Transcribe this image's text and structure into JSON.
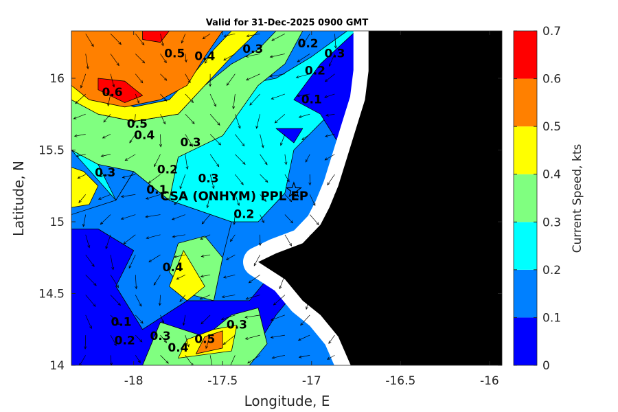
{
  "chart_data": {
    "type": "heatmap",
    "title": "Valid for 31-Dec-2025 0900 GMT",
    "xlabel": "Longitude, E",
    "ylabel": "Latitude, N",
    "xlim": [
      -18.35,
      -15.93
    ],
    "ylim": [
      14.0,
      16.33
    ],
    "xticks": [
      -18,
      -17.5,
      -17,
      -16.5,
      -16
    ],
    "yticks": [
      14,
      14.5,
      15,
      15.5,
      16
    ],
    "colorbar": {
      "label": "Current Speed, kts",
      "ticks": [
        0,
        0.1,
        0.2,
        0.3,
        0.4,
        0.5,
        0.6,
        0.7
      ],
      "levels": [
        {
          "min": 0.0,
          "max": 0.1,
          "color": "#0000ff"
        },
        {
          "min": 0.1,
          "max": 0.2,
          "color": "#0080ff"
        },
        {
          "min": 0.2,
          "max": 0.3,
          "color": "#00ffff"
        },
        {
          "min": 0.3,
          "max": 0.4,
          "color": "#80ff80"
        },
        {
          "min": 0.4,
          "max": 0.5,
          "color": "#ffff00"
        },
        {
          "min": 0.5,
          "max": 0.6,
          "color": "#ff8000"
        },
        {
          "min": 0.6,
          "max": 0.7,
          "color": "#ff0000"
        }
      ]
    },
    "regions": [
      {
        "level": 0.05,
        "points": [
          [
            -18.35,
            14.0
          ],
          [
            -17.6,
            14.0
          ],
          [
            -17.5,
            14.15
          ],
          [
            -17.3,
            14.15
          ],
          [
            -17.2,
            14.35
          ],
          [
            -17.1,
            14.5
          ],
          [
            -17.25,
            14.6
          ],
          [
            -17.35,
            14.45
          ],
          [
            -17.7,
            14.45
          ],
          [
            -17.95,
            14.25
          ],
          [
            -18.1,
            14.55
          ],
          [
            -18.0,
            14.8
          ],
          [
            -18.2,
            14.95
          ],
          [
            -18.35,
            14.95
          ]
        ]
      },
      {
        "level": 0.15,
        "points": [
          [
            -18.35,
            14.95
          ],
          [
            -18.2,
            14.95
          ],
          [
            -18.0,
            14.8
          ],
          [
            -18.1,
            14.55
          ],
          [
            -17.95,
            14.25
          ],
          [
            -17.7,
            14.45
          ],
          [
            -17.55,
            14.45
          ],
          [
            -17.5,
            14.75
          ],
          [
            -17.45,
            15.0
          ],
          [
            -17.8,
            15.15
          ],
          [
            -18.0,
            15.35
          ],
          [
            -18.1,
            15.15
          ],
          [
            -18.35,
            15.05
          ]
        ]
      },
      {
        "level": 0.25,
        "points": [
          [
            -18.35,
            15.5
          ],
          [
            -18.2,
            15.4
          ],
          [
            -18.1,
            15.15
          ],
          [
            -18.0,
            15.35
          ],
          [
            -17.8,
            15.15
          ],
          [
            -17.75,
            15.45
          ],
          [
            -17.55,
            15.6
          ],
          [
            -17.45,
            15.8
          ],
          [
            -17.4,
            15.95
          ],
          [
            -17.2,
            16.0
          ],
          [
            -17.0,
            16.15
          ],
          [
            -16.8,
            16.33
          ],
          [
            -16.68,
            16.33
          ],
          [
            -16.68,
            15.9
          ],
          [
            -16.9,
            15.75
          ],
          [
            -17.1,
            15.5
          ],
          [
            -17.15,
            15.2
          ],
          [
            -17.3,
            15.0
          ],
          [
            -17.45,
            15.0
          ],
          [
            -17.8,
            15.15
          ],
          [
            -18.0,
            15.35
          ],
          [
            -18.1,
            15.15
          ]
        ]
      },
      {
        "level": 0.35,
        "points": [
          [
            -18.35,
            15.85
          ],
          [
            -18.2,
            15.75
          ],
          [
            -18.0,
            15.7
          ],
          [
            -17.75,
            15.75
          ],
          [
            -17.6,
            15.95
          ],
          [
            -17.45,
            16.1
          ],
          [
            -17.3,
            16.2
          ],
          [
            -17.2,
            16.33
          ],
          [
            -17.05,
            16.33
          ],
          [
            -17.15,
            16.1
          ],
          [
            -17.3,
            15.95
          ],
          [
            -17.5,
            15.6
          ],
          [
            -17.75,
            15.45
          ],
          [
            -17.8,
            15.15
          ],
          [
            -18.0,
            15.35
          ],
          [
            -18.2,
            15.4
          ],
          [
            -18.35,
            15.5
          ]
        ]
      },
      {
        "level": 0.45,
        "points": [
          [
            -18.35,
            16.0
          ],
          [
            -18.2,
            15.9
          ],
          [
            -18.0,
            15.8
          ],
          [
            -17.8,
            15.85
          ],
          [
            -17.65,
            16.05
          ],
          [
            -17.55,
            16.2
          ],
          [
            -17.45,
            16.33
          ],
          [
            -17.3,
            16.33
          ],
          [
            -17.45,
            16.15
          ],
          [
            -17.6,
            15.95
          ],
          [
            -17.75,
            15.75
          ],
          [
            -18.0,
            15.7
          ],
          [
            -18.2,
            15.75
          ],
          [
            -18.35,
            15.85
          ]
        ]
      },
      {
        "level": 0.55,
        "points": [
          [
            -18.35,
            16.33
          ],
          [
            -17.5,
            16.33
          ],
          [
            -17.6,
            16.15
          ],
          [
            -17.7,
            15.95
          ],
          [
            -17.85,
            15.85
          ],
          [
            -18.05,
            15.8
          ],
          [
            -18.25,
            15.85
          ],
          [
            -18.35,
            15.95
          ]
        ]
      },
      {
        "level": 0.65,
        "points": [
          [
            -18.2,
            15.92
          ],
          [
            -18.05,
            15.83
          ],
          [
            -17.95,
            15.88
          ],
          [
            -18.05,
            15.98
          ],
          [
            -18.2,
            16.0
          ]
        ]
      },
      {
        "level": 0.65,
        "points": [
          [
            -17.95,
            16.33
          ],
          [
            -17.8,
            16.33
          ],
          [
            -17.85,
            16.25
          ],
          [
            -17.95,
            16.27
          ]
        ]
      },
      {
        "level": 0.45,
        "points": [
          [
            -18.35,
            15.1
          ],
          [
            -18.25,
            15.12
          ],
          [
            -18.2,
            15.25
          ],
          [
            -18.28,
            15.35
          ],
          [
            -18.35,
            15.38
          ]
        ]
      },
      {
        "level": 0.35,
        "points": [
          [
            -17.8,
            14.65
          ],
          [
            -17.7,
            14.5
          ],
          [
            -17.55,
            14.45
          ],
          [
            -17.5,
            14.75
          ],
          [
            -17.6,
            14.9
          ],
          [
            -17.75,
            14.85
          ]
        ]
      },
      {
        "level": 0.45,
        "points": [
          [
            -17.8,
            14.55
          ],
          [
            -17.7,
            14.45
          ],
          [
            -17.6,
            14.55
          ],
          [
            -17.72,
            14.8
          ]
        ]
      },
      {
        "level": 0.35,
        "points": [
          [
            -17.95,
            14.0
          ],
          [
            -17.35,
            14.0
          ],
          [
            -17.25,
            14.15
          ],
          [
            -17.3,
            14.4
          ],
          [
            -17.45,
            14.35
          ],
          [
            -17.6,
            14.2
          ],
          [
            -17.85,
            14.3
          ]
        ]
      },
      {
        "level": 0.45,
        "points": [
          [
            -17.75,
            14.05
          ],
          [
            -17.45,
            14.1
          ],
          [
            -17.42,
            14.28
          ],
          [
            -17.55,
            14.25
          ],
          [
            -17.7,
            14.18
          ]
        ]
      },
      {
        "level": 0.55,
        "points": [
          [
            -17.65,
            14.08
          ],
          [
            -17.5,
            14.12
          ],
          [
            -17.5,
            14.24
          ],
          [
            -17.6,
            14.2
          ]
        ]
      },
      {
        "level": 0.05,
        "points": [
          [
            -16.95,
            16.1
          ],
          [
            -16.75,
            16.33
          ],
          [
            -16.68,
            16.33
          ],
          [
            -16.68,
            15.6
          ],
          [
            -16.85,
            15.55
          ],
          [
            -16.95,
            15.75
          ],
          [
            -17.1,
            15.85
          ]
        ]
      },
      {
        "level": 0.05,
        "points": [
          [
            -17.2,
            15.65
          ],
          [
            -17.1,
            15.55
          ],
          [
            -17.05,
            15.65
          ]
        ]
      }
    ],
    "land": [
      [
        -16.68,
        16.33
      ],
      [
        -15.93,
        16.33
      ],
      [
        -15.93,
        14.0
      ],
      [
        -16.78,
        14.0
      ],
      [
        -16.85,
        14.2
      ],
      [
        -16.95,
        14.35
      ],
      [
        -17.05,
        14.45
      ],
      [
        -17.15,
        14.6
      ],
      [
        -17.3,
        14.72
      ],
      [
        -17.2,
        14.78
      ],
      [
        -17.05,
        14.85
      ],
      [
        -16.95,
        14.98
      ],
      [
        -16.9,
        15.1
      ],
      [
        -16.85,
        15.25
      ],
      [
        -16.8,
        15.45
      ],
      [
        -16.75,
        15.65
      ],
      [
        -16.7,
        15.85
      ],
      [
        -16.68,
        16.05
      ]
    ],
    "contour_labels": [
      {
        "text": "0.6",
        "lon": -18.12,
        "lat": 15.9
      },
      {
        "text": "0.5",
        "lon": -17.98,
        "lat": 15.68
      },
      {
        "text": "0.4",
        "lon": -17.94,
        "lat": 15.6
      },
      {
        "text": "0.3",
        "lon": -17.68,
        "lat": 15.55
      },
      {
        "text": "0.5",
        "lon": -17.77,
        "lat": 16.17
      },
      {
        "text": "0.4",
        "lon": -17.6,
        "lat": 16.15
      },
      {
        "text": "0.3",
        "lon": -17.33,
        "lat": 16.2
      },
      {
        "text": "0.2",
        "lon": -17.02,
        "lat": 16.24
      },
      {
        "text": "0.3",
        "lon": -16.87,
        "lat": 16.17
      },
      {
        "text": "0.2",
        "lon": -16.98,
        "lat": 16.05
      },
      {
        "text": "0.1",
        "lon": -17.0,
        "lat": 15.85
      },
      {
        "text": "0.3",
        "lon": -18.16,
        "lat": 15.34
      },
      {
        "text": "0.2",
        "lon": -17.81,
        "lat": 15.36
      },
      {
        "text": "0.1",
        "lon": -17.87,
        "lat": 15.22
      },
      {
        "text": "0.3",
        "lon": -17.58,
        "lat": 15.3
      },
      {
        "text": "0.2",
        "lon": -17.38,
        "lat": 15.05
      },
      {
        "text": "0.4",
        "lon": -17.78,
        "lat": 14.68
      },
      {
        "text": "0.3",
        "lon": -17.42,
        "lat": 14.28
      },
      {
        "text": "0.1",
        "lon": -18.07,
        "lat": 14.3
      },
      {
        "text": "0.2",
        "lon": -18.05,
        "lat": 14.17
      },
      {
        "text": "0.3",
        "lon": -17.85,
        "lat": 14.2
      },
      {
        "text": "0.4",
        "lon": -17.75,
        "lat": 14.12
      },
      {
        "text": "0.5",
        "lon": -17.6,
        "lat": 14.18
      }
    ],
    "annotations": [
      {
        "text": "CSA (ONHYM) PPL EP",
        "lon": -17.85,
        "lat": 15.15,
        "marker_lon": -17.1,
        "marker_lat": 15.22
      }
    ]
  }
}
